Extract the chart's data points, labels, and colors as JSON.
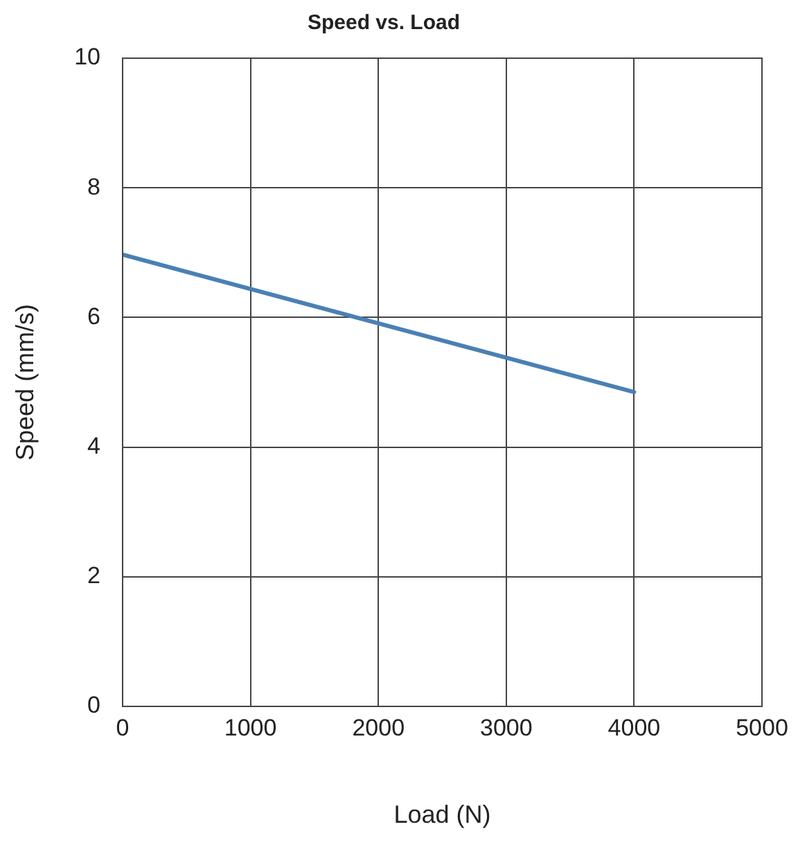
{
  "chart_data": {
    "type": "line",
    "title": "Speed vs. Load",
    "xlabel": "Load (N)",
    "ylabel": "Speed (mm/s)",
    "x": [
      0,
      4000
    ],
    "series": [
      {
        "color": "#4a80b4",
        "values": [
          6.97,
          4.85
        ]
      }
    ],
    "xlim": [
      0,
      5000
    ],
    "xticks": [
      0,
      1000,
      2000,
      3000,
      4000,
      5000
    ],
    "ylim": [
      0,
      10
    ],
    "yticks": [
      0,
      2,
      4,
      6,
      8,
      10
    ],
    "grid": true,
    "legend": false,
    "marker": "none",
    "line_style": "solid"
  }
}
